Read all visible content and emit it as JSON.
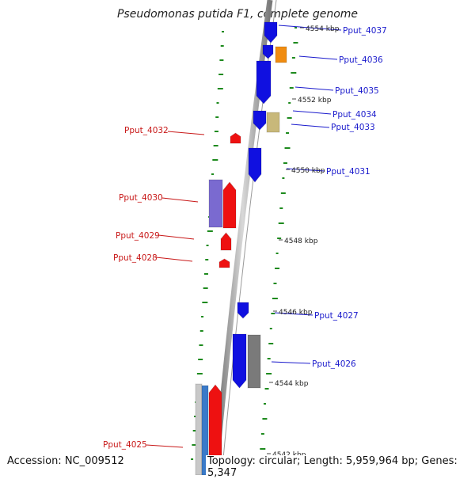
{
  "title": "Pseudomonas putida F1, complete genome",
  "accession_text": "Accession: NC_009512",
  "summary_text": "Topology: circular; Length: 5,959,964 bp; Genes: 5,347",
  "colors": {
    "forward_gene": "#0a0adc",
    "reverse_gene": "#ee1111",
    "forward_label": "#1a1acc",
    "reverse_label": "#c81818",
    "gc_ticks": "#1d8a1d",
    "backbone": "#8a8a8a"
  },
  "kbp_labels": [
    "4554 kbp",
    "4552 kbp",
    "4550 kbp",
    "4548 kbp",
    "4546 kbp",
    "4544 kbp",
    "4542 kbp"
  ],
  "forward_genes": [
    {
      "label": "Pput_4037",
      "color": "#1010e0"
    },
    {
      "label": "Pput_4036",
      "color": "#f08c10"
    },
    {
      "label": "Pput_4035",
      "color": "#1010e0"
    },
    {
      "label": "Pput_4034",
      "color": "#1010e0"
    },
    {
      "label": "Pput_4033",
      "color": "#c8b87a"
    },
    {
      "label": "Pput_4031",
      "color": "#1010e0"
    },
    {
      "label": "Pput_4027",
      "color": "#1010e0"
    },
    {
      "label": "Pput_4026",
      "color": "#7a7a7a"
    }
  ],
  "reverse_genes": [
    {
      "label": "Pput_4032",
      "color": "#ee1111"
    },
    {
      "label": "Pput_4030",
      "color": "#7a6ad0"
    },
    {
      "label": "Pput_4029",
      "color": "#ee1111"
    },
    {
      "label": "Pput_4028",
      "color": "#ee1111"
    },
    {
      "label": "Pput_4025",
      "color": "#ee1111"
    }
  ]
}
